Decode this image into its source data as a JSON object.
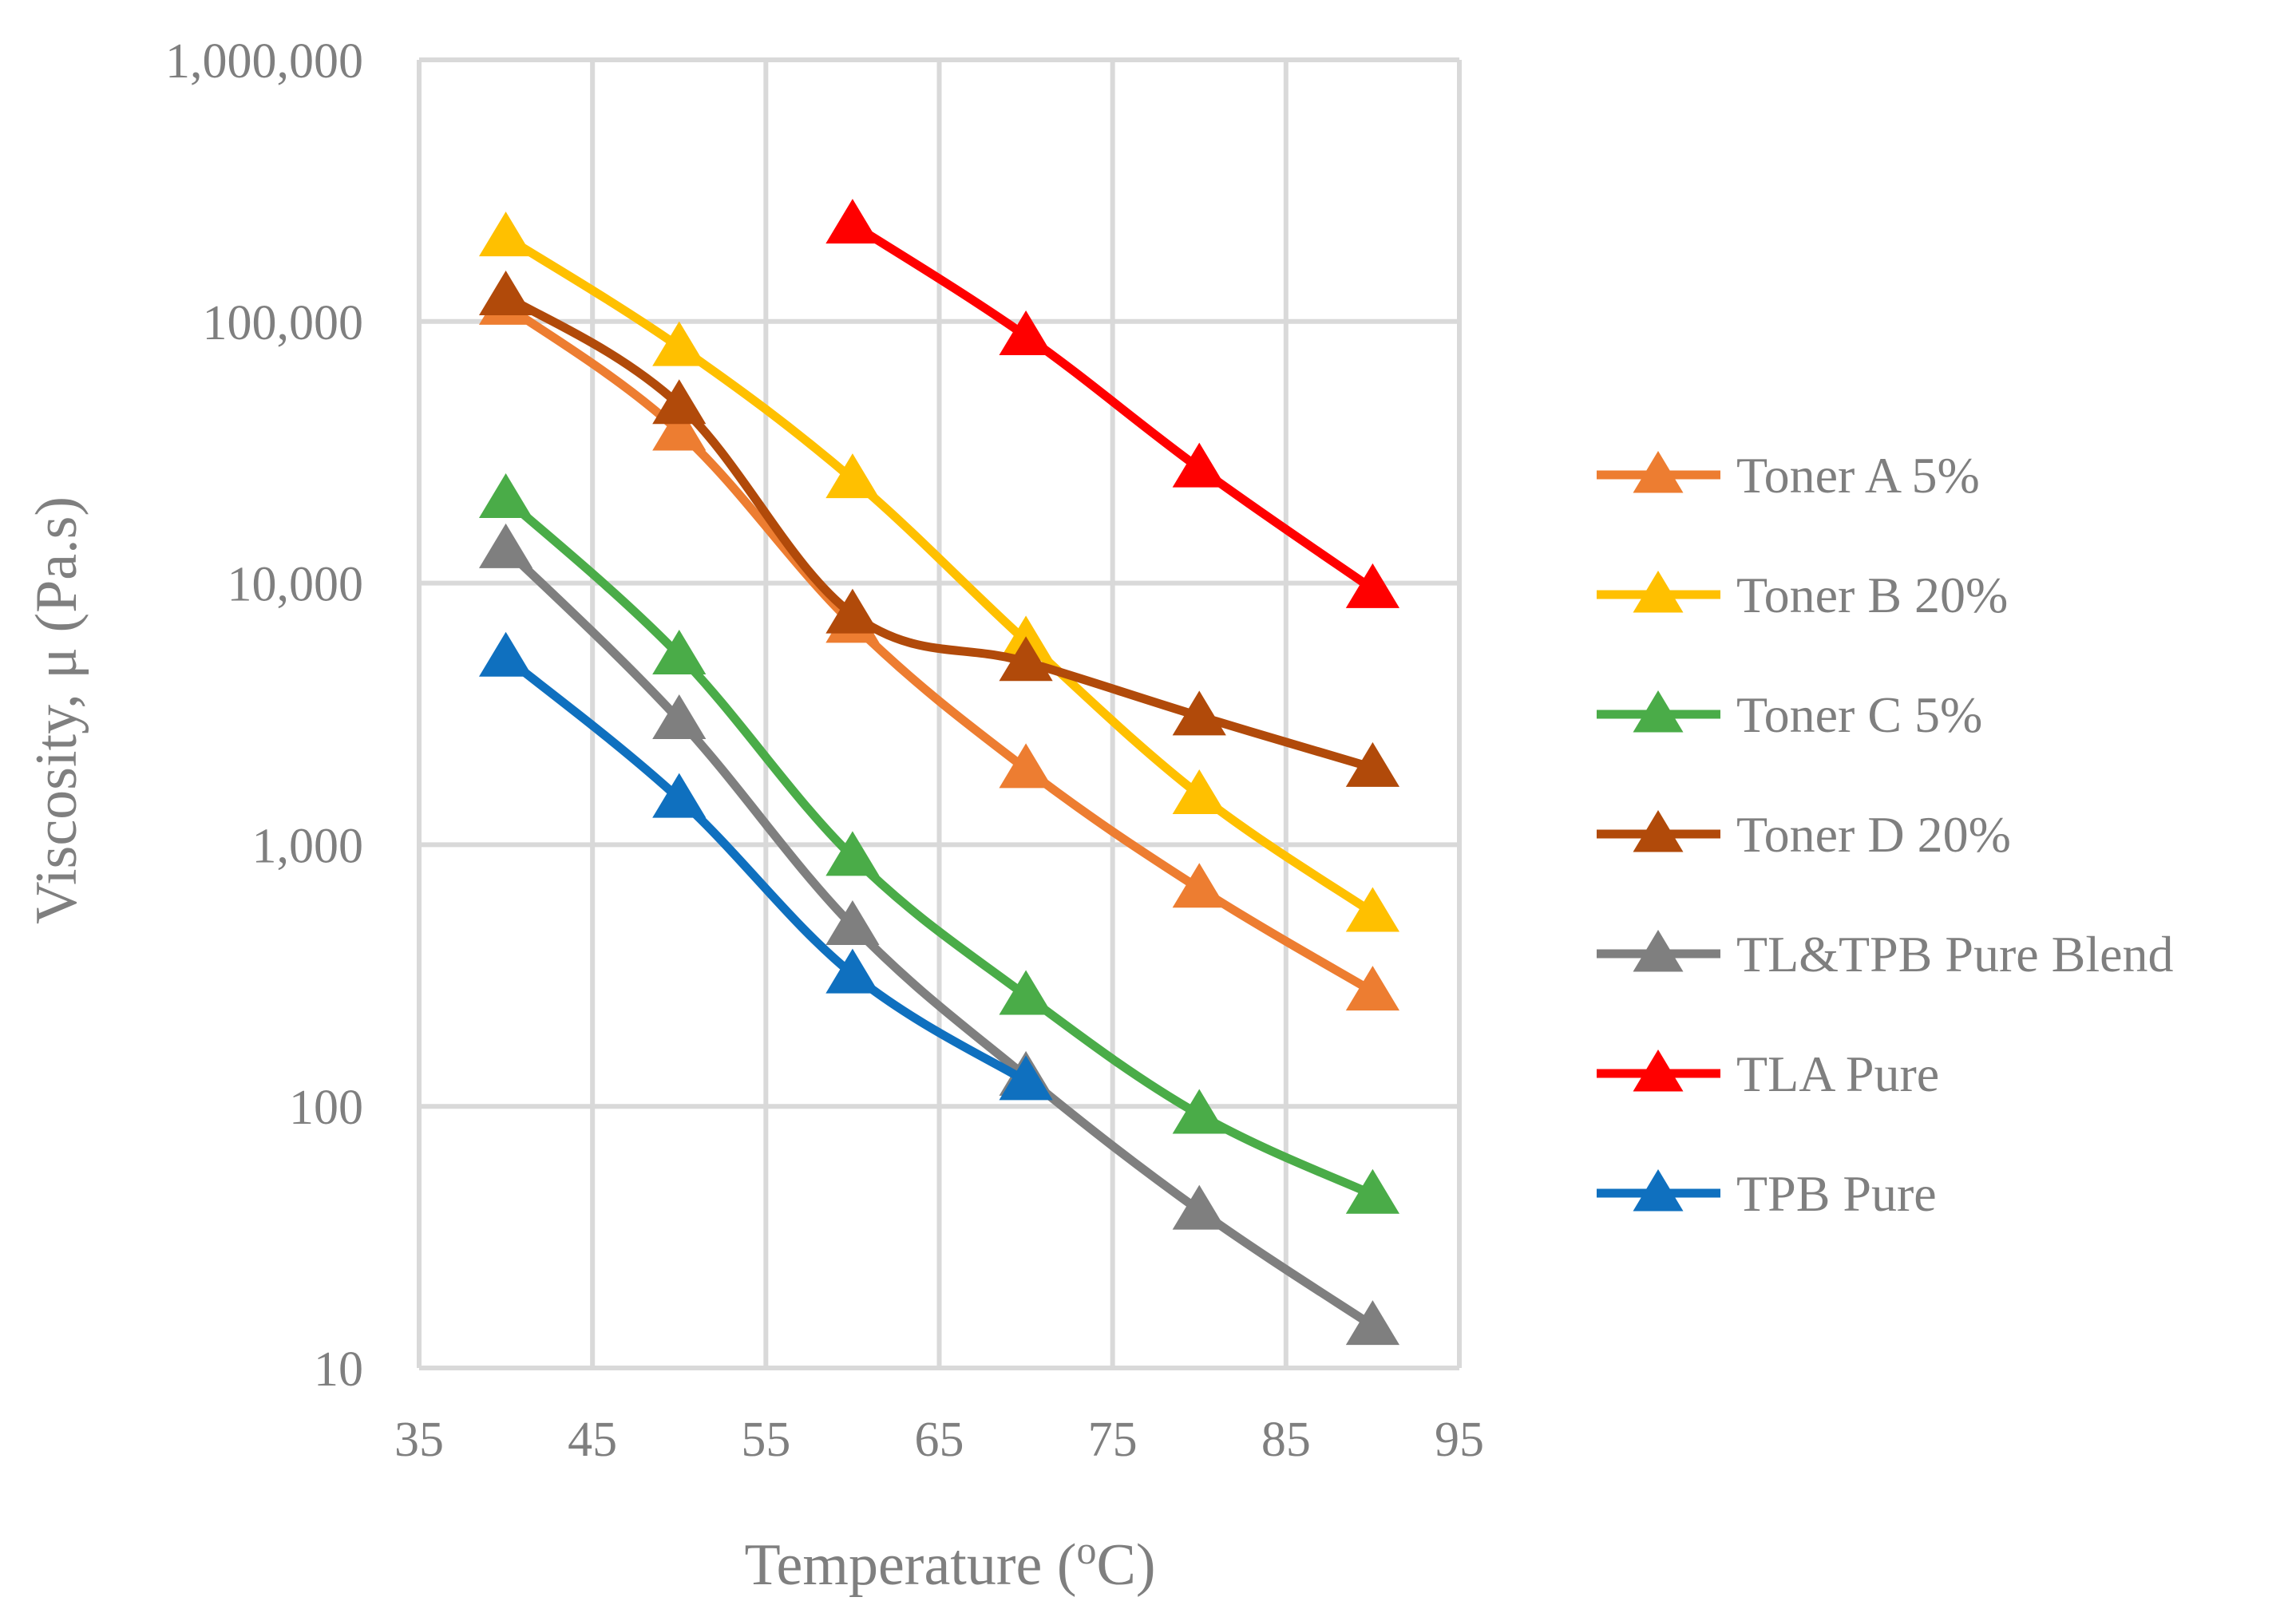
{
  "chart_data": {
    "type": "line",
    "title": "",
    "xlabel": "Temperature (",
    "xlabel_sup": "o",
    "xlabel_end": "C)",
    "ylabel": "Viscosity, μ (Pa.s)",
    "xlim": [
      35,
      95
    ],
    "xticks": [
      35,
      45,
      55,
      65,
      75,
      85,
      95
    ],
    "xtick_labels": [
      "35",
      "45",
      "55",
      "65",
      "75",
      "85",
      "95"
    ],
    "yscale": "log",
    "ylim": [
      10,
      1000000
    ],
    "yticks": [
      10,
      100,
      1000,
      10000,
      100000,
      1000000
    ],
    "ytick_labels": [
      "10",
      "100",
      "1,000",
      "10,000",
      "100,000",
      "1,000,000"
    ],
    "grid": true,
    "legend_position": "right",
    "series": [
      {
        "name": "Toner A 5%",
        "color": "#ed7d31",
        "x": [
          40,
          50,
          60,
          70,
          80,
          90
        ],
        "values": [
          115000,
          38000,
          7000,
          1950,
          680,
          275
        ]
      },
      {
        "name": "Toner B 20%",
        "color": "#ffc000",
        "x": [
          40,
          50,
          60,
          70,
          80,
          90
        ],
        "values": [
          210000,
          80000,
          25000,
          6000,
          1550,
          550
        ]
      },
      {
        "name": "Toner C 5%",
        "color": "#4aac48",
        "x": [
          40,
          50,
          60,
          70,
          80,
          90
        ],
        "values": [
          21000,
          5300,
          900,
          265,
          93,
          46
        ]
      },
      {
        "name": "Toner D 20%",
        "color": "#b14a0a",
        "x": [
          40,
          50,
          60,
          70,
          80,
          90
        ],
        "values": [
          125000,
          48000,
          7600,
          5000,
          3100,
          1970
        ]
      },
      {
        "name": "TL&TPB Pure Blend",
        "color": "#7f7f7f",
        "x": [
          40,
          50,
          60,
          70,
          80,
          90
        ],
        "values": [
          13500,
          3000,
          490,
          130,
          40,
          14.5
        ]
      },
      {
        "name": "TLA Pure",
        "color": "#ff0000",
        "x": [
          60,
          70,
          80,
          90
        ],
        "values": [
          235000,
          88000,
          27500,
          9500
        ]
      },
      {
        "name": "TPB Pure",
        "color": "#0f70bf",
        "x": [
          40,
          50,
          60,
          70
        ],
        "values": [
          5200,
          1500,
          320,
          125
        ]
      }
    ]
  }
}
